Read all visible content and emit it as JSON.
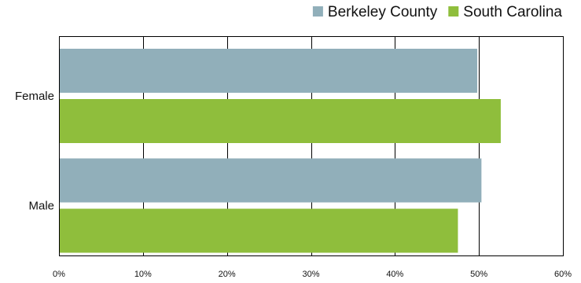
{
  "chart_data": {
    "type": "bar",
    "orientation": "horizontal",
    "title": "",
    "xlabel": "",
    "ylabel": "",
    "categories": [
      "Female",
      "Male"
    ],
    "series": [
      {
        "name": "Berkeley County",
        "color": "#91afba",
        "values": [
          49.8,
          50.3
        ]
      },
      {
        "name": "South Carolina",
        "color": "#8fbe3c",
        "values": [
          52.6,
          47.5
        ]
      }
    ],
    "xlim": [
      0,
      60
    ],
    "xticks": [
      0,
      10,
      20,
      30,
      40,
      50,
      60
    ],
    "tick_suffix": "%",
    "grid": true,
    "legend_position": "top-right"
  }
}
